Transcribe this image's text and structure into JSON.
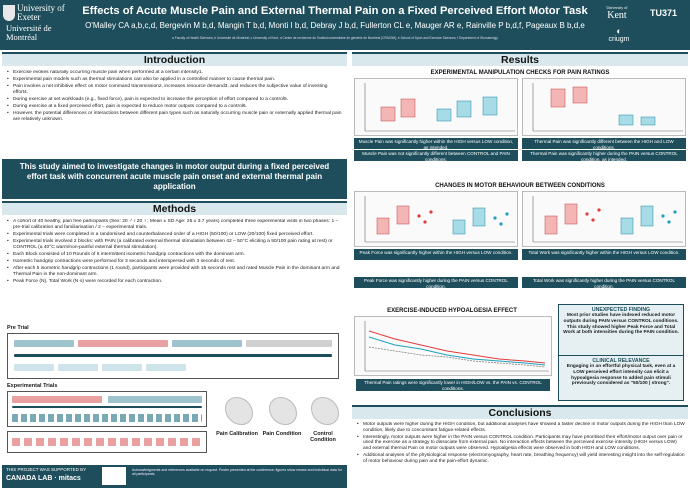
{
  "header": {
    "logo_uni1": "University of Exeter",
    "logo_uni2": "Université de Montréal",
    "title": "Effects of Acute Muscle Pain and External Thermal Pain on a Fixed Perceived Effort Motor Task",
    "authors": "O'Malley CA a,b,c,d, Bergevin M b,d, Mangin T b,d, Monti I b,d, Debray J b,d, Fullerton CL e, Mauger AR e, Rainville P b,d,f, Pageaux B b,d,e",
    "affiliations": "a Faculty of Health Sciences; b Université de Montréal; c University of Kent; d Centre de recherche de l'Institut universitaire de gériatrie de Montréal (CRIUGM); e School of Sport and Exercise Sciences; f Department of Stomatology",
    "logo_kent_small": "University of",
    "logo_kent": "Kent",
    "logo_iugm": "criugm",
    "code": "TU371"
  },
  "introduction": {
    "heading": "Introduction",
    "bullets": [
      "Exercise evokes naturally occurring muscle pain when performed at a certain intensity1.",
      "Experimental pain models such as thermal stimulations can also be applied in a controlled manner to cause thermal pain.",
      "Pain invokes a net inhibitive effect on motor command transmission2, increases resource demand3, and reduces the subjective value of investing effort4.",
      "During exercise at set workloads (e.g., fixed force), pain is expected to increase the perception of effort compared to a control5.",
      "During exercise at a fixed perceived effort, pain is expected to reduce motor outputs compared to a control6.",
      "However, the potential differences or interactions between different pain types such as naturally occurring muscle pain or externally applied thermal pain are relatively unknown."
    ]
  },
  "aim": "This study aimed to investigate changes in motor output during a fixed perceived effort task with concurrent acute muscle pain onset and external thermal pain application",
  "methods": {
    "heading": "Methods",
    "bullets": [
      "A cohort of 40 healthy, pain free participants (Sex: 20 ♂ / 20 ♀; Mean ± SD Age: 25 ± 3.7 years) completed three experimental visits in two phases: 1 – pre-trial calibration and familiarisation / 2 – experimental trials.",
      "Experimental trials were completed in a randomised and counterbalanced order of a HIGH (50/100) or LOW (20/100) fixed perceived effort.",
      "Experimental trials involved 2 blocks: with PAIN (a calibrated external thermal stimulation between 42 – 50°C eliciting a 50/100 pain rating at rest) or CONTROL (a 40°C warm/non-painful external thermal stimulation).",
      "Each Block consisted of 10 Rounds of 5 intermittent isometric handgrip contractions with the dominant arm.",
      "Isometric handgrip contractions were performed for 3 seconds and interspersed with 3 seconds of rest.",
      "After each 5 isometric handgrip contractions (1 round), participants were provided with 15 seconds rest and rated Muscle Pain in the dominant arm and Thermal Pain in the non-dominant arm.",
      "Peak Force (N), Total Work (N·s) were recorded for each contraction."
    ],
    "pre_trial_label": "Pre Trial",
    "exp_trials_label": "Experimental Trials",
    "phase_labels": [
      "Pain Calibration",
      "Pain Condition",
      "Control Condition"
    ]
  },
  "funding": {
    "label": "THIS PROJECT WAS SUPPORTED BY",
    "logos": "CANADA LAB  ·  mitacs",
    "twin": "TURING",
    "fine": "Acknowledgments and references available on request. Poster presented at the conference; figures show means and individual data for all participants."
  },
  "results": {
    "heading": "Results",
    "section1_title": "EXPERIMENTAL MANIPULATION CHECKS FOR PAIN RATINGS",
    "callouts1": [
      "Muscle Pain was significantly higher within the HIGH versus LOW condition, as intended.",
      "Thermal Pain was significantly different between the HIGH and LOW conditions.",
      "Muscle Pain was not significantly different between CONTROL and PAIN conditions.",
      "Thermal Pain was significantly higher during the PAIN versus CONTROL condition, as intended."
    ],
    "section2_title": "CHANGES IN MOTOR BEHAVIOUR BETWEEN CONDITIONS",
    "callouts2": [
      "Peak Force was significantly higher within the HIGH versus LOW condition.",
      "Total Work was significantly higher within the HIGH versus LOW condition.",
      "Peak Force was significantly higher during the PAIN versus CONTROL condition.",
      "Total Work was significantly higher during the PAIN versus CONTROL condition."
    ],
    "section3_title": "EXERCISE-INDUCED HYPOALGESIA EFFECT",
    "callout3": "Thermal Pain ratings were significantly lower in HIGH/LOW vs. the PAIN vs. CONTROL conditions.",
    "unexpected_title": "UNEXPECTED FINDING",
    "unexpected_text": "Most prior studies have indexed reduced motor outputs during PAIN versus CONTROL conditions. This study showed higher Peak Force and Total Work at both intensities during the PAIN condition.",
    "relevance_title": "CLINICAL RELEVANCE",
    "relevance_text": "Engaging in an effortful physical task, even at a LOW perceived effort intensity can elicit a hypoalgesia response to added pain stimuli previously considered as \"50/100 | strong\"."
  },
  "conclusions": {
    "heading": "Conclusions",
    "bullets": [
      "Motor outputs were higher during the HIGH condition, but additional analyses have showed a faster decline in motor outputs during the HIGH than LOW condition, likely due to concomitant fatigue-related effects.",
      "Interestingly, motor outputs were higher in the PAIN versus CONTROL condition. Participants may have prioritised their effort/motor output over pain or used the exercise as a strategy to dissociate from external pain. No interaction effects between the perceived exercise intensity (HIGH versus LOW) and external thermal Pain on motor outputs were observed. Hypoalgesia effects were observed in both HIGH and LOW conditions.",
      "Additional analyses of the physiological response (electromyography, heart rate, breathing frequency) will yield interesting insight into the self-regulation of motor behaviour during pain and the pain-effort dynamic."
    ]
  },
  "colors": {
    "header": "#1e4e5c",
    "pain": "#e23b3b",
    "control": "#1fa0c0",
    "panel_bg": "#d9e8ec"
  }
}
